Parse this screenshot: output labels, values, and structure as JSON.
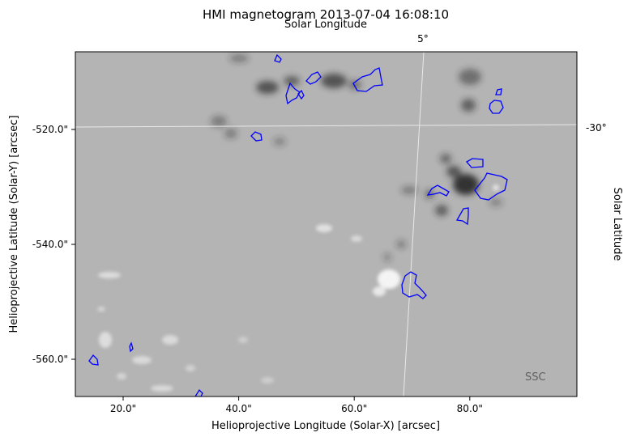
{
  "plot": {
    "title": "HMI magnetogram 2013-07-04 16:08:10",
    "xlabel": "Helioprojective Longitude (Solar-X) [arcsec]",
    "ylabel": "Helioprojective Latitude (Solar-Y) [arcsec]",
    "top_axis_label": "Solar Longitude",
    "right_axis_label": "Solar Latitude",
    "top_tick_label": "5°",
    "right_tick_label": "-30°",
    "watermark": "SSC",
    "x_ticks": [
      {
        "value": 20,
        "label": "20.0\""
      },
      {
        "value": 40,
        "label": "40.0\""
      },
      {
        "value": 60,
        "label": "60.0\""
      },
      {
        "value": 80,
        "label": "80.0\""
      }
    ],
    "y_ticks": [
      {
        "value": -520,
        "label": "-520.0\""
      },
      {
        "value": -540,
        "label": "-540.0\""
      },
      {
        "value": -560,
        "label": "-560.0\""
      }
    ],
    "contour_color": "#0000ff",
    "background_color": "#b4b4b4"
  }
}
